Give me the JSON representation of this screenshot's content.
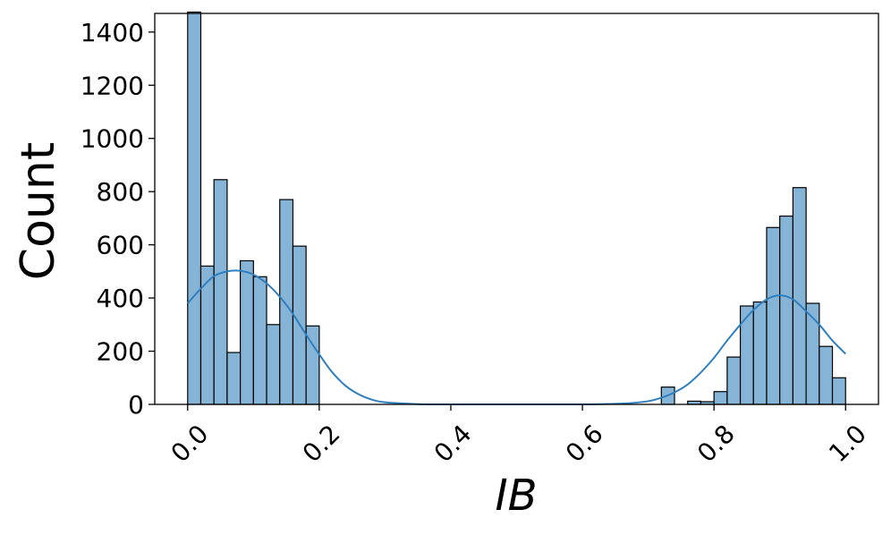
{
  "chart_data": {
    "type": "bar",
    "xlabel": "IB",
    "ylabel": "Count",
    "xlim": [
      -0.05,
      1.05
    ],
    "ylim": [
      0,
      1470
    ],
    "grid": false,
    "bin_width": 0.02,
    "x_ticks": [
      "0.0",
      "0.2",
      "0.4",
      "0.6",
      "0.8",
      "1.0"
    ],
    "x_tick_values": [
      0.0,
      0.2,
      0.4,
      0.6,
      0.8,
      1.0
    ],
    "y_ticks": [
      "0",
      "200",
      "400",
      "600",
      "800",
      "1000",
      "1200",
      "1400"
    ],
    "y_tick_values": [
      0,
      200,
      400,
      600,
      800,
      1000,
      1200,
      1400
    ],
    "bins": [
      {
        "x0": 0.0,
        "count": 1475
      },
      {
        "x0": 0.02,
        "count": 520
      },
      {
        "x0": 0.04,
        "count": 845
      },
      {
        "x0": 0.06,
        "count": 195
      },
      {
        "x0": 0.08,
        "count": 540
      },
      {
        "x0": 0.1,
        "count": 480
      },
      {
        "x0": 0.12,
        "count": 300
      },
      {
        "x0": 0.14,
        "count": 770
      },
      {
        "x0": 0.16,
        "count": 595
      },
      {
        "x0": 0.18,
        "count": 295
      },
      {
        "x0": 0.72,
        "count": 65
      },
      {
        "x0": 0.76,
        "count": 12
      },
      {
        "x0": 0.78,
        "count": 10
      },
      {
        "x0": 0.8,
        "count": 48
      },
      {
        "x0": 0.82,
        "count": 178
      },
      {
        "x0": 0.84,
        "count": 370
      },
      {
        "x0": 0.86,
        "count": 385
      },
      {
        "x0": 0.88,
        "count": 665
      },
      {
        "x0": 0.9,
        "count": 708
      },
      {
        "x0": 0.92,
        "count": 815
      },
      {
        "x0": 0.94,
        "count": 380
      },
      {
        "x0": 0.96,
        "count": 218
      },
      {
        "x0": 0.98,
        "count": 100
      }
    ],
    "kde": {
      "x": [
        0.0,
        0.02,
        0.04,
        0.06,
        0.08,
        0.1,
        0.12,
        0.14,
        0.16,
        0.18,
        0.2,
        0.22,
        0.24,
        0.26,
        0.28,
        0.3,
        0.35,
        0.4,
        0.5,
        0.6,
        0.66,
        0.7,
        0.72,
        0.74,
        0.76,
        0.78,
        0.8,
        0.82,
        0.84,
        0.86,
        0.88,
        0.9,
        0.92,
        0.94,
        0.96,
        0.98,
        1.0
      ],
      "y": [
        380,
        435,
        482,
        500,
        502,
        488,
        455,
        405,
        340,
        262,
        188,
        120,
        70,
        38,
        18,
        8,
        1,
        0,
        0,
        0,
        3,
        12,
        25,
        45,
        75,
        120,
        175,
        240,
        300,
        355,
        395,
        410,
        395,
        350,
        300,
        240,
        190
      ]
    },
    "bar_color": "#86b4d6",
    "bar_edge_color": "#000000",
    "kde_color": "#2f7fbf"
  }
}
